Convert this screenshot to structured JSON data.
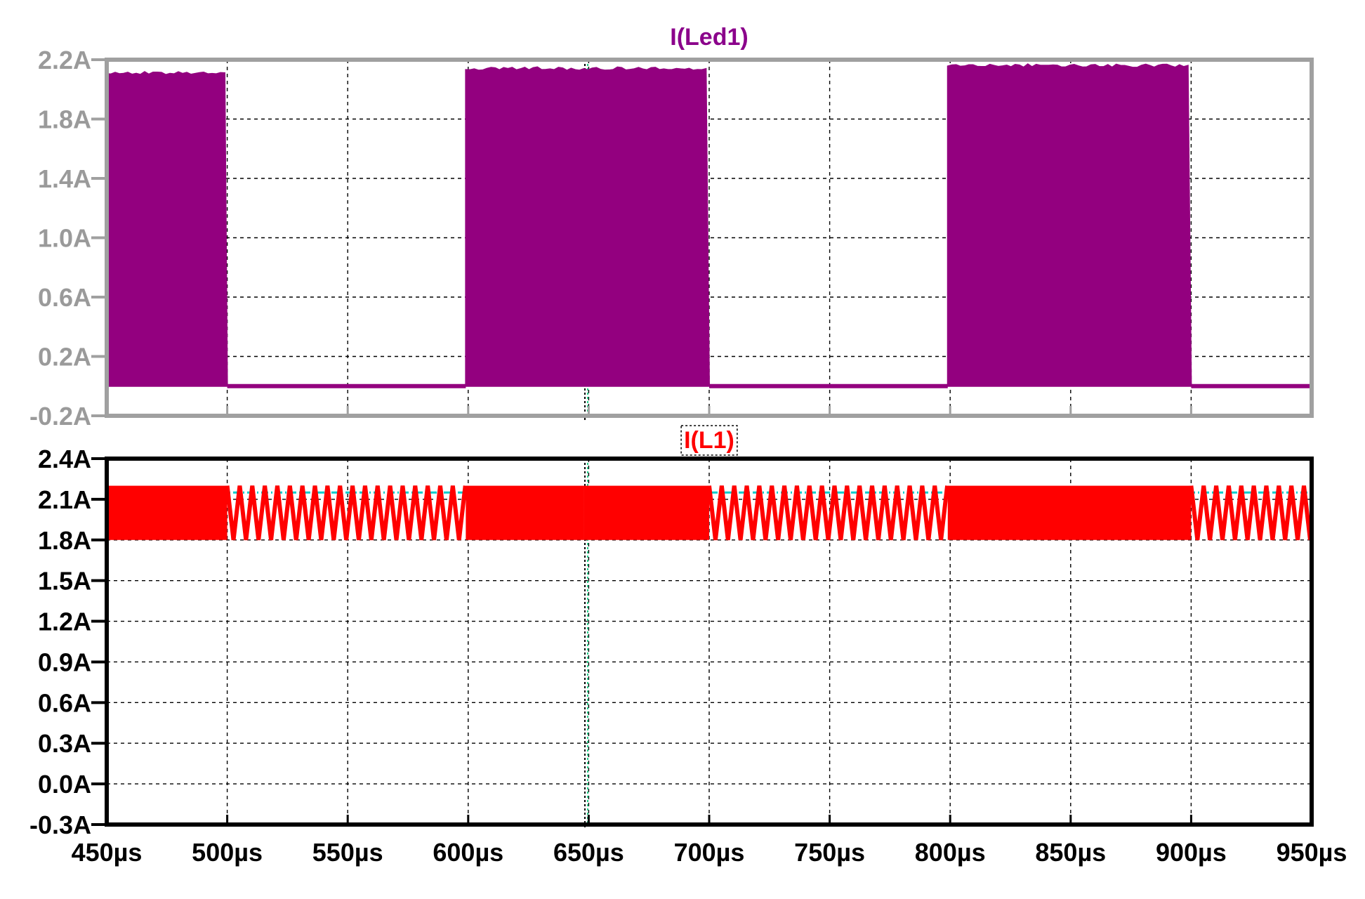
{
  "chart_data": [
    {
      "type": "line",
      "title": "I(Led1)",
      "title_color": "#8B008B",
      "series": [
        {
          "name": "I(Led1)",
          "color": "#93007F",
          "on_levels": [
            2.12,
            2.15,
            2.17
          ],
          "off_level": 0.0,
          "envelope": [
            {
              "start": 450,
              "end": 500,
              "state": "switching",
              "high": 2.12,
              "low": 0.0
            },
            {
              "start": 500,
              "end": 599,
              "state": "off",
              "value": 0.0
            },
            {
              "start": 599,
              "end": 700,
              "state": "switching",
              "high": 2.15,
              "low": 0.0
            },
            {
              "start": 700,
              "end": 799,
              "state": "off",
              "value": 0.0
            },
            {
              "start": 799,
              "end": 900,
              "state": "switching",
              "high": 2.17,
              "low": 0.0
            },
            {
              "start": 900,
              "end": 950,
              "state": "off",
              "value": 0.0
            }
          ]
        }
      ],
      "xlim": [
        450,
        950
      ],
      "ylim": [
        -0.2,
        2.2
      ],
      "yticks": [
        -0.2,
        0.2,
        0.6,
        1.0,
        1.4,
        1.8,
        2.2
      ],
      "yticklabels": [
        "-0.2A",
        "0.2A",
        "0.6A",
        "1.0A",
        "1.4A",
        "1.8A",
        "2.2A"
      ],
      "xticks": [
        450,
        500,
        550,
        600,
        650,
        700,
        750,
        800,
        850,
        900,
        950
      ],
      "grid": true,
      "cursor_x": 649,
      "frame_color": "#a0a0a0"
    },
    {
      "type": "line",
      "title": "I(L1)",
      "title_color": "#ff0000",
      "series": [
        {
          "name": "I(L1)",
          "color": "#ff0000",
          "ripple_low": 1.8,
          "ripple_high": 2.2,
          "dense_segments": [
            [
              450,
              500
            ],
            [
              599,
              648
            ],
            [
              648,
              700
            ],
            [
              799,
              900
            ]
          ],
          "sparse_segments": [
            [
              500,
              599
            ],
            [
              700,
              799
            ],
            [
              900,
              950
            ]
          ],
          "sparse_period_us": 5.2
        }
      ],
      "reference_level": 2.15,
      "xlim": [
        450,
        950
      ],
      "ylim": [
        -0.3,
        2.4
      ],
      "yticks": [
        -0.3,
        0.0,
        0.3,
        0.6,
        0.9,
        1.2,
        1.5,
        1.8,
        2.1,
        2.4
      ],
      "yticklabels": [
        "-0.3A",
        "0.0A",
        "0.3A",
        "0.6A",
        "0.9A",
        "1.2A",
        "1.5A",
        "1.8A",
        "2.1A",
        "2.4A"
      ],
      "xticks": [
        450,
        500,
        550,
        600,
        650,
        700,
        750,
        800,
        850,
        900,
        950
      ],
      "xticklabels": [
        "450µs",
        "500µs",
        "550µs",
        "600µs",
        "650µs",
        "700µs",
        "750µs",
        "800µs",
        "850µs",
        "900µs",
        "950µs"
      ],
      "grid": true,
      "cursor_x": 649,
      "frame_color": "#000000"
    }
  ]
}
